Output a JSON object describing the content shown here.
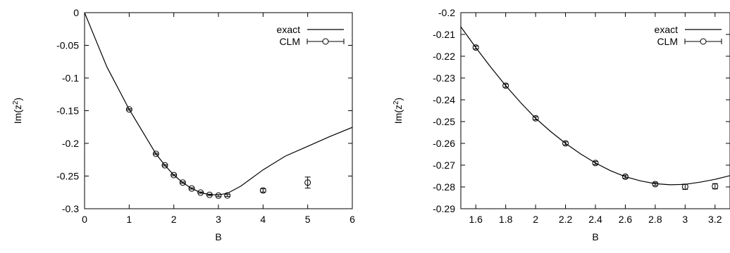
{
  "chart_data": [
    {
      "type": "line",
      "xlabel": "B",
      "ylabel": "Im(z",
      "ylabel_sup": "2",
      "ylabel_close": ")",
      "xlim": [
        0,
        6
      ],
      "ylim": [
        -0.3,
        0
      ],
      "xticks": [
        0,
        1,
        2,
        3,
        4,
        5,
        6
      ],
      "yticks": [
        0,
        -0.05,
        -0.1,
        -0.15,
        -0.2,
        -0.25,
        -0.3
      ],
      "xtick_labels": [
        "0",
        "1",
        "2",
        "3",
        "4",
        "5",
        "6"
      ],
      "ytick_labels": [
        "0",
        "-0.05",
        "-0.1",
        "-0.15",
        "-0.2",
        "-0.25",
        "-0.3"
      ],
      "grid": false,
      "legend_position": "top-right",
      "series": [
        {
          "name": "exact",
          "style": "line",
          "x": [
            0,
            0.5,
            1.0,
            1.6,
            1.8,
            2.0,
            2.2,
            2.4,
            2.6,
            2.8,
            3.0,
            3.2,
            3.5,
            4.0,
            4.5,
            5.0,
            5.5,
            6.0
          ],
          "y": [
            0,
            -0.083,
            -0.148,
            -0.216,
            -0.2335,
            -0.2485,
            -0.26,
            -0.269,
            -0.2753,
            -0.2785,
            -0.2788,
            -0.2765,
            -0.2655,
            -0.2405,
            -0.2195,
            -0.2045,
            -0.1895,
            -0.1755
          ]
        },
        {
          "name": "CLM",
          "style": "points-errorbars",
          "x": [
            1.0,
            1.6,
            1.8,
            2.0,
            2.2,
            2.4,
            2.6,
            2.8,
            3.0,
            3.2,
            4.0,
            5.0
          ],
          "y": [
            -0.148,
            -0.216,
            -0.2335,
            -0.2485,
            -0.26,
            -0.269,
            -0.2753,
            -0.2787,
            -0.2799,
            -0.2797,
            -0.272,
            -0.26
          ],
          "yerr": [
            0.001,
            0.001,
            0.001,
            0.001,
            0.001,
            0.001,
            0.001,
            0.001,
            0.0015,
            0.0015,
            0.0025,
            0.0085
          ]
        }
      ]
    },
    {
      "type": "line",
      "xlabel": "B",
      "ylabel": "Im(z",
      "ylabel_sup": "2",
      "ylabel_close": ")",
      "xlim": [
        1.5,
        3.3
      ],
      "ylim": [
        -0.29,
        -0.2
      ],
      "xticks": [
        1.6,
        1.8,
        2.0,
        2.2,
        2.4,
        2.6,
        2.8,
        3.0,
        3.2
      ],
      "yticks": [
        -0.2,
        -0.21,
        -0.22,
        -0.23,
        -0.24,
        -0.25,
        -0.26,
        -0.27,
        -0.28,
        -0.29
      ],
      "xtick_labels": [
        "1.6",
        "1.8",
        "2",
        "2.2",
        "2.4",
        "2.6",
        "2.8",
        "3",
        "3.2"
      ],
      "ytick_labels": [
        "-0.2",
        "-0.21",
        "-0.22",
        "-0.23",
        "-0.24",
        "-0.25",
        "-0.26",
        "-0.27",
        "-0.28",
        "-0.29"
      ],
      "grid": false,
      "legend_position": "top-right",
      "series": [
        {
          "name": "exact",
          "style": "line",
          "x": [
            1.5,
            1.6,
            1.7,
            1.8,
            1.9,
            2.0,
            2.1,
            2.2,
            2.3,
            2.4,
            2.5,
            2.6,
            2.7,
            2.8,
            2.9,
            3.0,
            3.1,
            3.2,
            3.3
          ],
          "y": [
            -0.2065,
            -0.216,
            -0.225,
            -0.2335,
            -0.2413,
            -0.2485,
            -0.2545,
            -0.26,
            -0.2648,
            -0.269,
            -0.2725,
            -0.2753,
            -0.2772,
            -0.2785,
            -0.279,
            -0.2788,
            -0.2778,
            -0.2765,
            -0.2748
          ]
        },
        {
          "name": "CLM",
          "style": "points-errorbars",
          "x": [
            1.6,
            1.8,
            2.0,
            2.2,
            2.4,
            2.6,
            2.8,
            3.0,
            3.2
          ],
          "y": [
            -0.216,
            -0.2335,
            -0.2485,
            -0.26,
            -0.269,
            -0.2753,
            -0.2787,
            -0.2799,
            -0.2797
          ],
          "yerr": [
            0.0007,
            0.0007,
            0.0007,
            0.0007,
            0.0007,
            0.0007,
            0.0007,
            0.0012,
            0.0012
          ]
        }
      ]
    }
  ]
}
